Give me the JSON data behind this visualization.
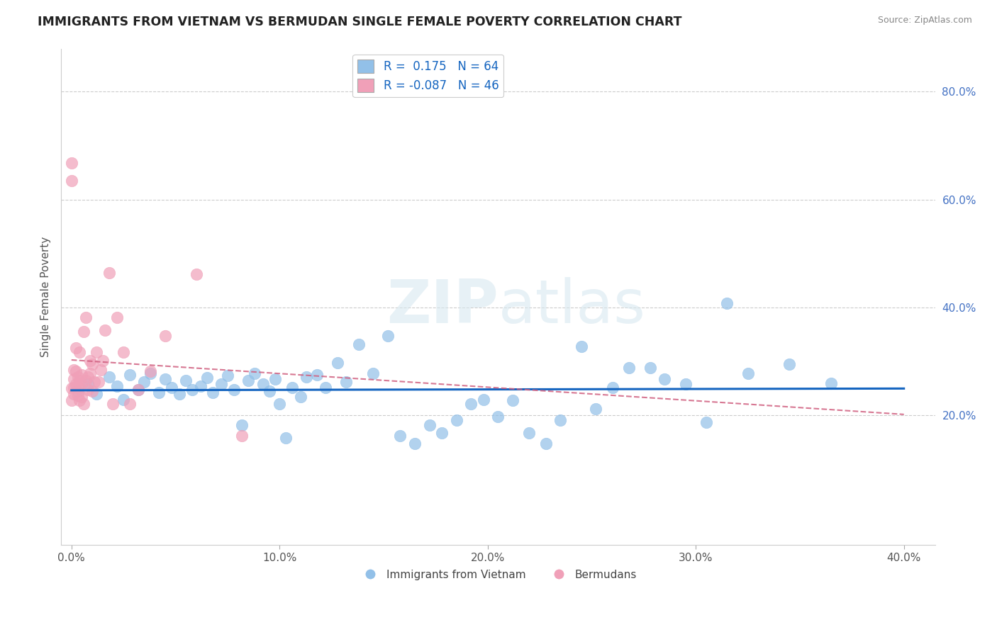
{
  "title": "IMMIGRANTS FROM VIETNAM VS BERMUDAN SINGLE FEMALE POVERTY CORRELATION CHART",
  "source": "Source: ZipAtlas.com",
  "ylabel": "Single Female Poverty",
  "xlim": [
    -0.005,
    0.415
  ],
  "ylim": [
    -0.04,
    0.88
  ],
  "xtick_labels": [
    "0.0%",
    "10.0%",
    "20.0%",
    "30.0%",
    "40.0%"
  ],
  "xtick_vals": [
    0.0,
    0.1,
    0.2,
    0.3,
    0.4
  ],
  "ytick_labels": [
    "20.0%",
    "40.0%",
    "60.0%",
    "80.0%"
  ],
  "ytick_vals": [
    0.2,
    0.4,
    0.6,
    0.8
  ],
  "r_blue": 0.175,
  "n_blue": 64,
  "r_pink": -0.087,
  "n_pink": 46,
  "blue_color": "#92C0E8",
  "pink_color": "#F0A0B8",
  "blue_line_color": "#1565C0",
  "pink_line_color": "#D06080",
  "background_color": "#FFFFFF",
  "blue_scatter_x": [
    0.003,
    0.008,
    0.012,
    0.018,
    0.022,
    0.025,
    0.028,
    0.032,
    0.035,
    0.038,
    0.042,
    0.045,
    0.048,
    0.052,
    0.055,
    0.058,
    0.062,
    0.065,
    0.068,
    0.072,
    0.075,
    0.078,
    0.082,
    0.085,
    0.088,
    0.092,
    0.095,
    0.098,
    0.1,
    0.103,
    0.106,
    0.11,
    0.113,
    0.118,
    0.122,
    0.128,
    0.132,
    0.138,
    0.145,
    0.152,
    0.158,
    0.165,
    0.172,
    0.178,
    0.185,
    0.192,
    0.198,
    0.205,
    0.212,
    0.22,
    0.228,
    0.235,
    0.245,
    0.252,
    0.26,
    0.268,
    0.278,
    0.285,
    0.295,
    0.305,
    0.315,
    0.325,
    0.345,
    0.365
  ],
  "blue_scatter_y": [
    0.245,
    0.258,
    0.24,
    0.272,
    0.255,
    0.23,
    0.275,
    0.248,
    0.262,
    0.278,
    0.242,
    0.268,
    0.252,
    0.24,
    0.265,
    0.248,
    0.255,
    0.27,
    0.242,
    0.258,
    0.274,
    0.248,
    0.182,
    0.265,
    0.278,
    0.258,
    0.245,
    0.268,
    0.222,
    0.158,
    0.252,
    0.235,
    0.272,
    0.275,
    0.252,
    0.298,
    0.262,
    0.332,
    0.278,
    0.348,
    0.162,
    0.148,
    0.182,
    0.168,
    0.192,
    0.222,
    0.23,
    0.198,
    0.228,
    0.168,
    0.148,
    0.192,
    0.328,
    0.212,
    0.252,
    0.288,
    0.288,
    0.268,
    0.258,
    0.188,
    0.408,
    0.278,
    0.295,
    0.26
  ],
  "pink_scatter_x": [
    0.0,
    0.0,
    0.0,
    0.0,
    0.001,
    0.001,
    0.001,
    0.001,
    0.002,
    0.002,
    0.002,
    0.003,
    0.003,
    0.003,
    0.004,
    0.004,
    0.004,
    0.005,
    0.005,
    0.005,
    0.006,
    0.006,
    0.007,
    0.007,
    0.008,
    0.008,
    0.009,
    0.009,
    0.01,
    0.01,
    0.011,
    0.012,
    0.013,
    0.014,
    0.015,
    0.016,
    0.018,
    0.02,
    0.022,
    0.025,
    0.028,
    0.032,
    0.038,
    0.045,
    0.06,
    0.082
  ],
  "pink_scatter_y": [
    0.635,
    0.668,
    0.25,
    0.228,
    0.268,
    0.285,
    0.252,
    0.24,
    0.325,
    0.258,
    0.282,
    0.252,
    0.272,
    0.238,
    0.228,
    0.318,
    0.265,
    0.275,
    0.258,
    0.235,
    0.355,
    0.222,
    0.265,
    0.382,
    0.248,
    0.272,
    0.278,
    0.302,
    0.245,
    0.295,
    0.262,
    0.318,
    0.262,
    0.285,
    0.302,
    0.358,
    0.465,
    0.222,
    0.382,
    0.318,
    0.222,
    0.248,
    0.282,
    0.348,
    0.462,
    0.162
  ]
}
